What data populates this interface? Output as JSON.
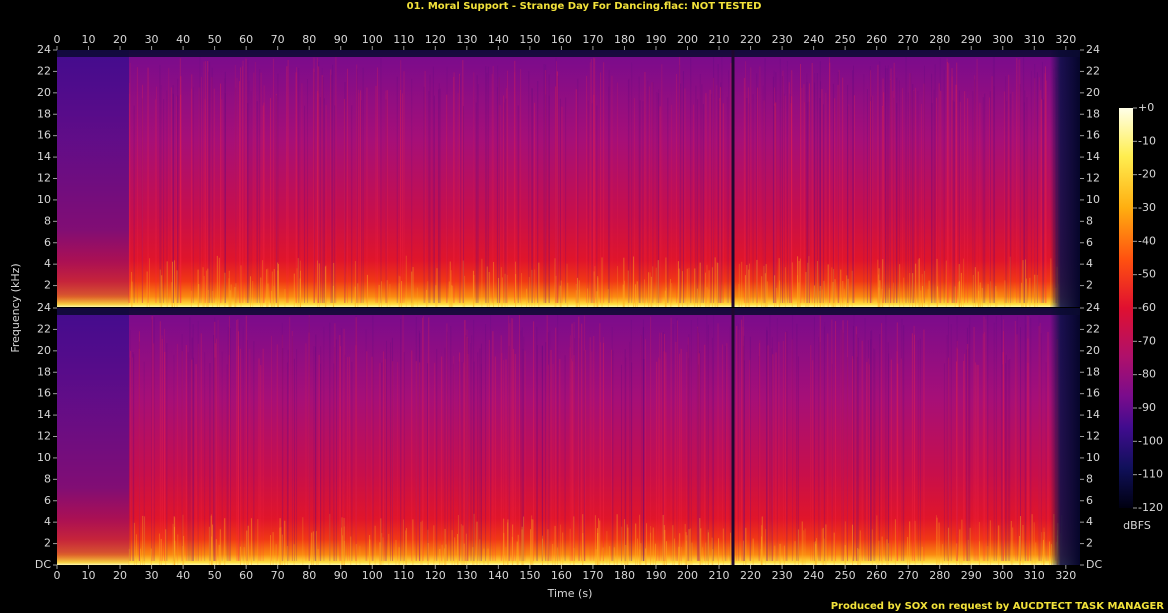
{
  "chart_data": [
    {
      "type": "spectrogram",
      "title": "01. Moral Support - Strange Day For Dancing.flac: NOT TESTED",
      "xlabel": "Time (s)",
      "ylabel": "Frequency (kHz)",
      "xlim": [
        0,
        324.5
      ],
      "xticks": [
        0,
        10,
        20,
        30,
        40,
        50,
        60,
        70,
        80,
        90,
        100,
        110,
        120,
        130,
        140,
        150,
        160,
        170,
        180,
        190,
        200,
        210,
        220,
        230,
        240,
        250,
        260,
        270,
        280,
        290,
        300,
        310,
        320
      ],
      "ylim": [
        0,
        24
      ],
      "yticks": [
        2,
        4,
        6,
        8,
        10,
        12,
        14,
        16,
        18,
        20,
        22,
        24
      ],
      "colorbar": {
        "label": "dBFS",
        "lim": [
          -120,
          0
        ],
        "ticks": [
          {
            "value": 0,
            "label": "+0"
          },
          -10,
          -20,
          -30,
          -40,
          -50,
          -60,
          -70,
          -80,
          -90,
          -100,
          -110,
          -120
        ]
      },
      "note": "Produced by SOX on request by AUCDTECT TASK MANAGER"
    },
    {
      "type": "spectrogram",
      "ylim": [
        0,
        24
      ],
      "yticks": [
        {
          "value": 0,
          "label": "DC"
        },
        2,
        4,
        6,
        8,
        10,
        12,
        14,
        16,
        18,
        20,
        22,
        24
      ]
    }
  ]
}
